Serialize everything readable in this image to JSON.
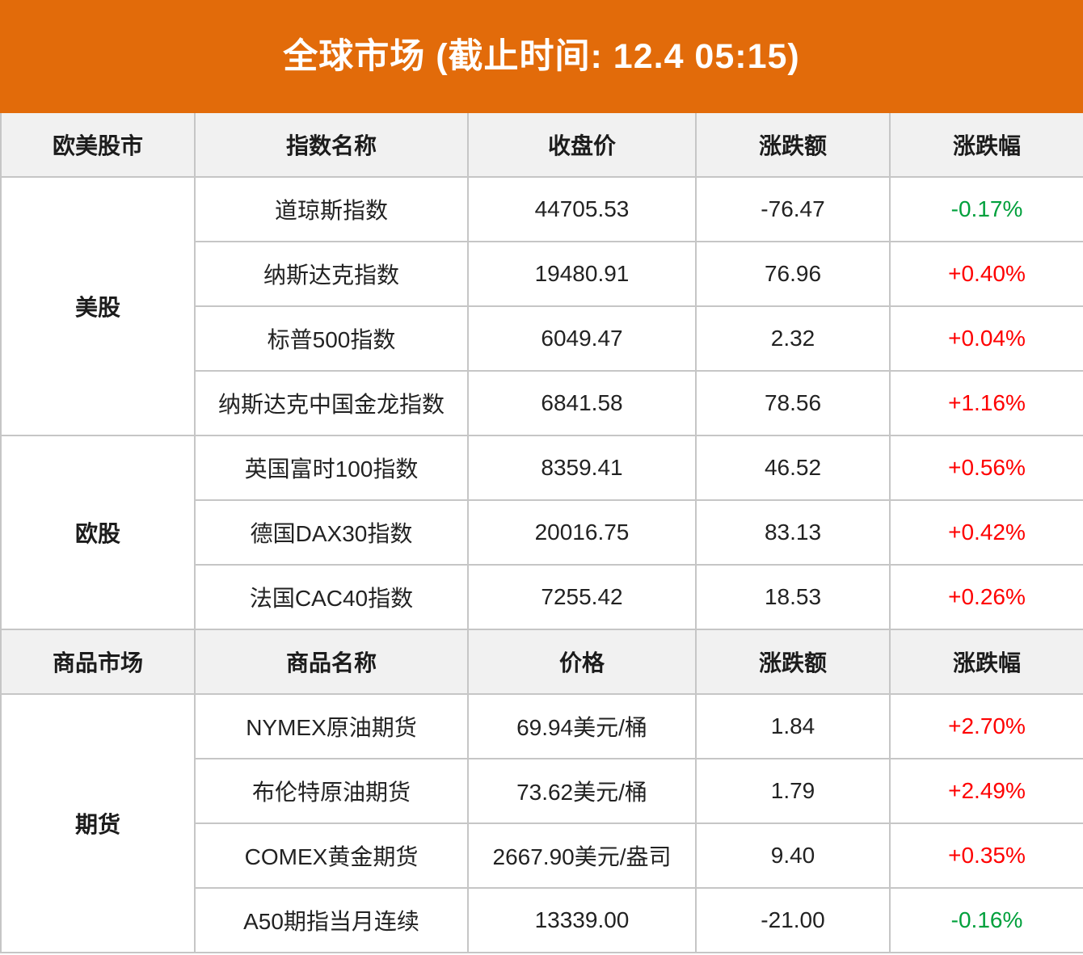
{
  "banner": {
    "title": "全球市场 (截止时间: 12.4 05:15)"
  },
  "colors": {
    "banner_bg": "#E26B0A",
    "up_red": "#FE0000",
    "down_green": "#00A03C",
    "header_bg": "#F1F1F1",
    "border": "#C6C6C6",
    "text": "#222222"
  },
  "chart_data": {
    "type": "table",
    "title": "全球市场 (截止时间: 12.4 05:15)",
    "sections": [
      {
        "header": [
          "欧美股市",
          "指数名称",
          "收盘价",
          "涨跌额",
          "涨跌幅"
        ],
        "groups": [
          {
            "label": "美股",
            "rows": [
              {
                "name": "道琼斯指数",
                "price": "44705.53",
                "change": "-76.47",
                "pct": "-0.17%",
                "dir": "down"
              },
              {
                "name": "纳斯达克指数",
                "price": "19480.91",
                "change": "76.96",
                "pct": "+0.40%",
                "dir": "up"
              },
              {
                "name": "标普500指数",
                "price": "6049.47",
                "change": "2.32",
                "pct": "+0.04%",
                "dir": "up"
              },
              {
                "name": "纳斯达克中国金龙指数",
                "price": "6841.58",
                "change": "78.56",
                "pct": "+1.16%",
                "dir": "up"
              }
            ]
          },
          {
            "label": "欧股",
            "rows": [
              {
                "name": "英国富时100指数",
                "price": "8359.41",
                "change": "46.52",
                "pct": "+0.56%",
                "dir": "up"
              },
              {
                "name": "德国DAX30指数",
                "price": "20016.75",
                "change": "83.13",
                "pct": "+0.42%",
                "dir": "up"
              },
              {
                "name": "法国CAC40指数",
                "price": "7255.42",
                "change": "18.53",
                "pct": "+0.26%",
                "dir": "up"
              }
            ]
          }
        ]
      },
      {
        "header": [
          "商品市场",
          "商品名称",
          "价格",
          "涨跌额",
          "涨跌幅"
        ],
        "groups": [
          {
            "label": "期货",
            "rows": [
              {
                "name": "NYMEX原油期货",
                "price": "69.94美元/桶",
                "change": "1.84",
                "pct": "+2.70%",
                "dir": "up"
              },
              {
                "name": "布伦特原油期货",
                "price": "73.62美元/桶",
                "change": "1.79",
                "pct": "+2.49%",
                "dir": "up"
              },
              {
                "name": "COMEX黄金期货",
                "price": "2667.90美元/盎司",
                "change": "9.40",
                "pct": "+0.35%",
                "dir": "up"
              },
              {
                "name": "A50期指当月连续",
                "price": "13339.00",
                "change": "-21.00",
                "pct": "-0.16%",
                "dir": "down"
              }
            ]
          }
        ]
      }
    ]
  }
}
